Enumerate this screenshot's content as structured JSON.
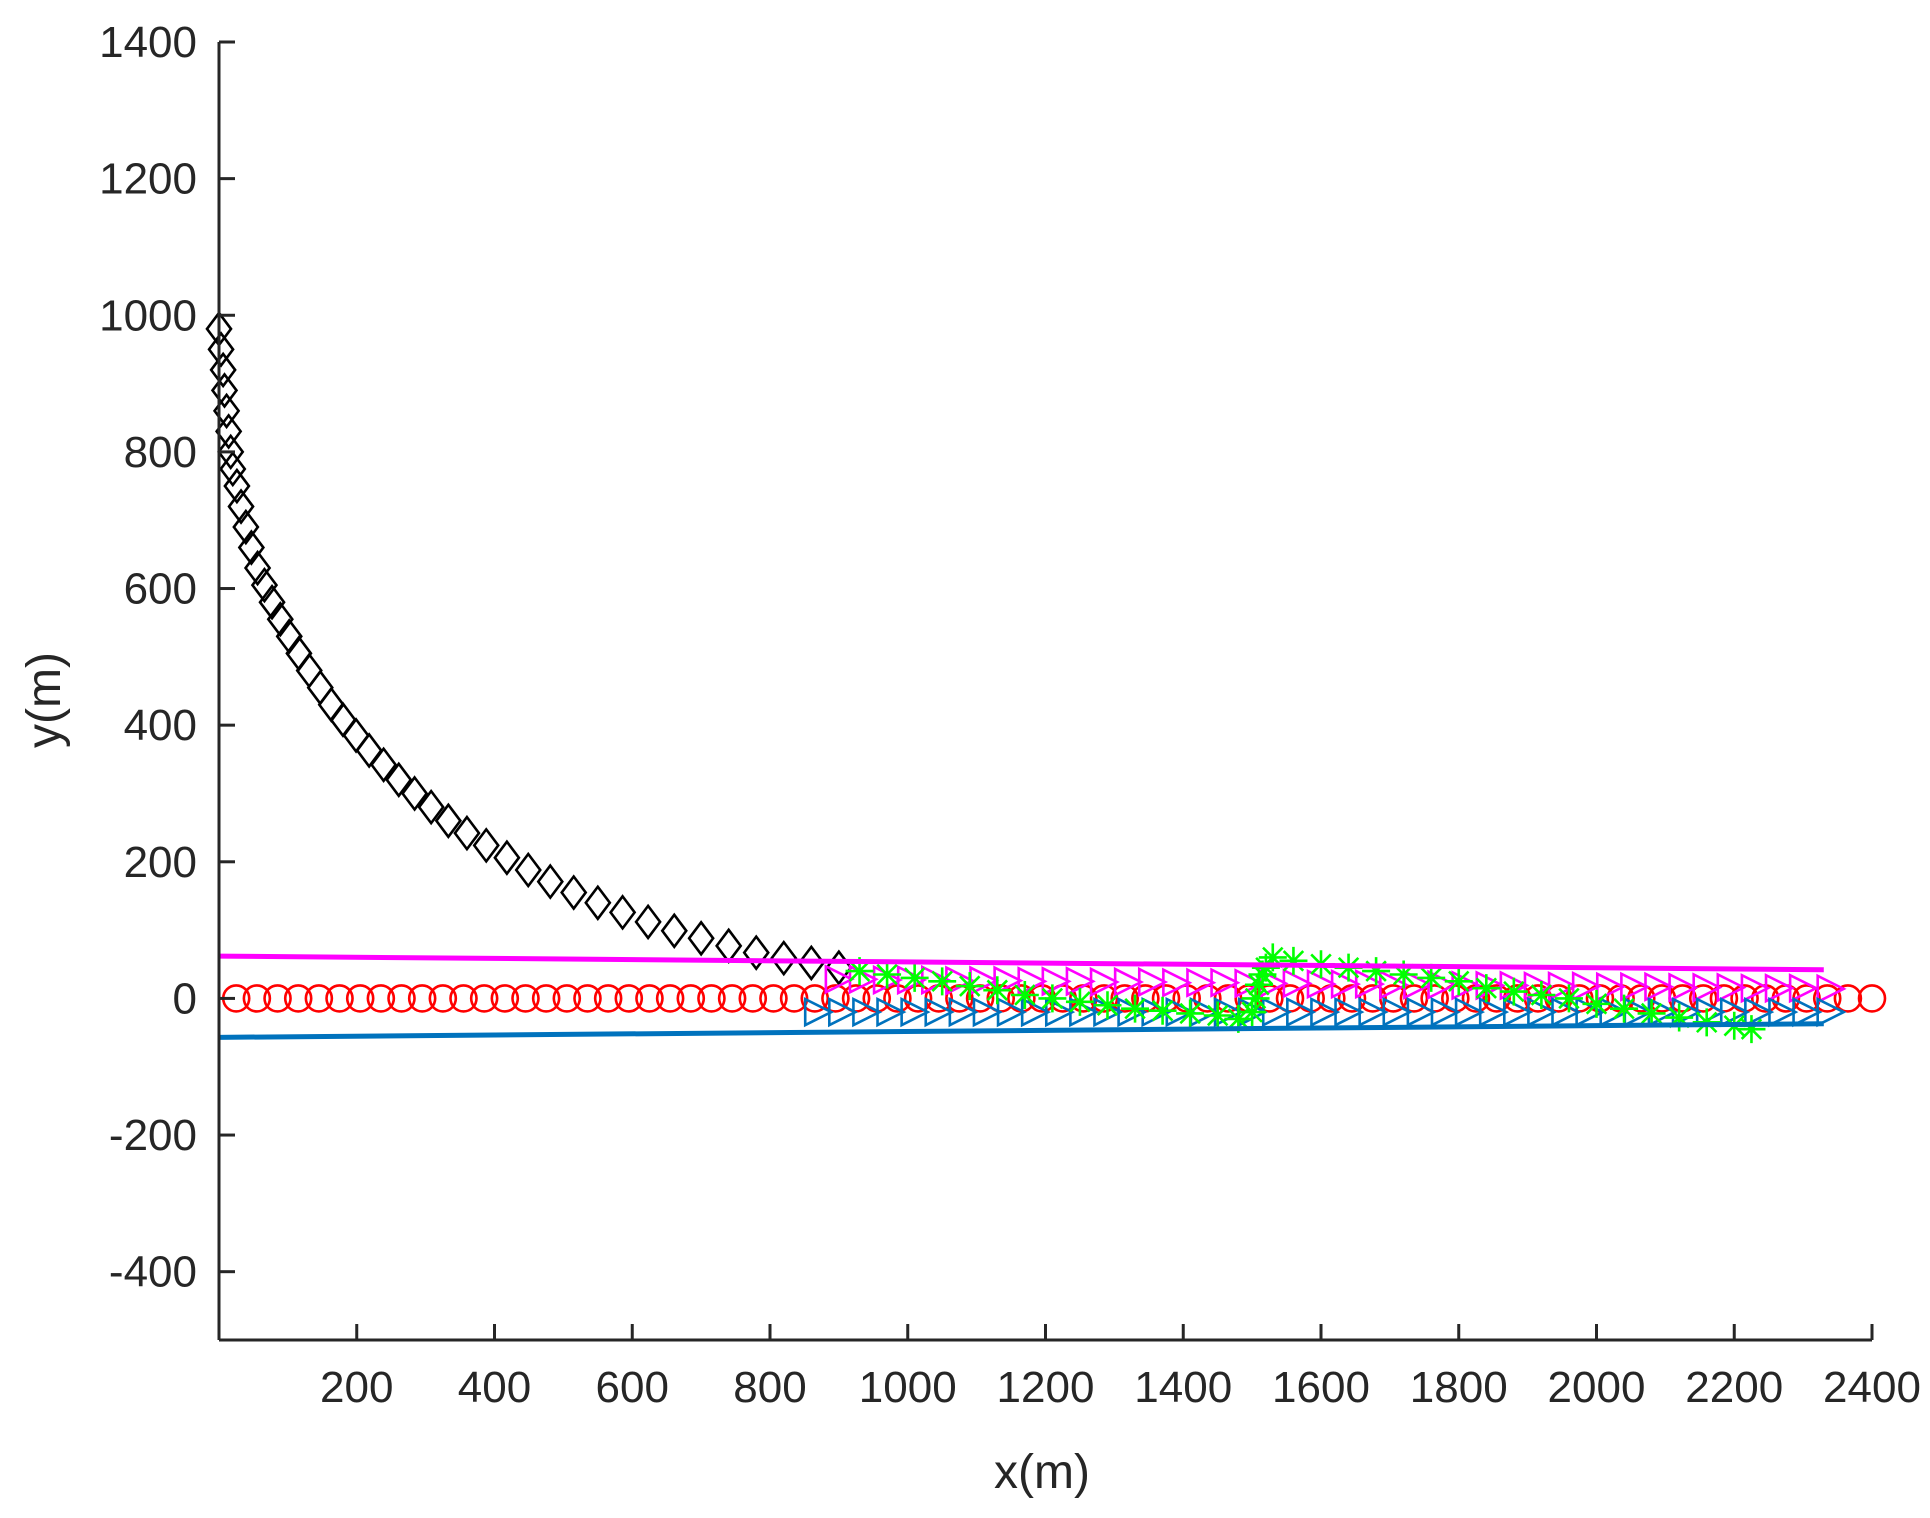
{
  "chart_data": {
    "type": "scatter",
    "title": "",
    "xlabel": "x(m)",
    "ylabel": "y(m)",
    "xlim": [
      0,
      2400
    ],
    "ylim": [
      -500,
      1400
    ],
    "xticks": [
      200,
      400,
      600,
      800,
      1000,
      1200,
      1400,
      1600,
      1800,
      2000,
      2200,
      2400
    ],
    "yticks": [
      -400,
      -200,
      0,
      200,
      400,
      600,
      800,
      1000,
      1200,
      1400
    ],
    "grid": false,
    "legend": "none",
    "series": [
      {
        "marker": "diamond",
        "color": "#000000",
        "x": [
          0,
          3,
          6,
          8,
          11,
          14,
          17,
          20,
          26,
          32,
          39,
          47,
          56,
          66,
          77,
          89,
          102,
          116,
          131,
          147,
          163,
          180,
          199,
          218,
          239,
          261,
          284,
          308,
          333,
          360,
          388,
          418,
          449,
          481,
          515,
          550,
          586,
          623,
          661,
          700,
          740,
          780,
          820,
          860,
          900
        ],
        "y": [
          980,
          950,
          920,
          890,
          860,
          830,
          800,
          775,
          750,
          720,
          690,
          660,
          630,
          605,
          580,
          555,
          530,
          505,
          480,
          455,
          430,
          408,
          385,
          363,
          342,
          320,
          300,
          280,
          260,
          242,
          224,
          206,
          188,
          171,
          155,
          140,
          126,
          112,
          99,
          88,
          77,
          67,
          59,
          52,
          45
        ]
      },
      {
        "marker": "circle",
        "color": "#ff0000",
        "x": [
          25,
          55,
          85,
          115,
          145,
          175,
          205,
          235,
          265,
          295,
          325,
          355,
          385,
          415,
          445,
          475,
          505,
          535,
          565,
          595,
          625,
          655,
          685,
          715,
          745,
          775,
          805,
          835,
          865,
          895,
          925,
          955,
          985,
          1015,
          1045,
          1075,
          1105,
          1135,
          1165,
          1195,
          1225,
          1255,
          1285,
          1315,
          1345,
          1375,
          1405,
          1435,
          1465,
          1495,
          1525,
          1555,
          1585,
          1615,
          1645,
          1675,
          1705,
          1735,
          1765,
          1795,
          1825,
          1855,
          1885,
          1915,
          1945,
          1975,
          2005,
          2035,
          2065,
          2095,
          2125,
          2155,
          2185,
          2215,
          2245,
          2275,
          2305,
          2335,
          2365,
          2400
        ],
        "y": [
          0,
          0,
          0,
          0,
          0,
          0,
          0,
          0,
          0,
          0,
          0,
          0,
          0,
          0,
          0,
          0,
          0,
          0,
          0,
          0,
          0,
          0,
          0,
          0,
          0,
          0,
          0,
          0,
          0,
          0,
          0,
          0,
          0,
          0,
          0,
          0,
          0,
          0,
          0,
          0,
          0,
          0,
          0,
          0,
          0,
          0,
          0,
          0,
          0,
          0,
          0,
          0,
          0,
          0,
          0,
          0,
          0,
          0,
          0,
          0,
          0,
          0,
          0,
          0,
          0,
          0,
          0,
          0,
          0,
          0,
          0,
          0,
          0,
          0,
          0,
          0,
          0,
          0,
          0,
          0
        ]
      },
      {
        "marker": "triangle-right",
        "color": "#ff00ff",
        "x": [
          900,
          935,
          970,
          1005,
          1040,
          1075,
          1110,
          1145,
          1180,
          1215,
          1250,
          1285,
          1320,
          1355,
          1390,
          1425,
          1460,
          1495,
          1530,
          1565,
          1600,
          1635,
          1670,
          1705,
          1740,
          1775,
          1810,
          1845,
          1880,
          1915,
          1950,
          1985,
          2020,
          2055,
          2090,
          2125,
          2160,
          2195,
          2230,
          2265,
          2300,
          2340
        ],
        "y": [
          28,
          28,
          27,
          27,
          27,
          26,
          26,
          26,
          25,
          25,
          25,
          24,
          24,
          24,
          23,
          23,
          23,
          22,
          22,
          22,
          21,
          21,
          21,
          20,
          20,
          20,
          19,
          19,
          19,
          18,
          18,
          18,
          17,
          17,
          17,
          16,
          16,
          16,
          15,
          15,
          15,
          14
        ]
      },
      {
        "marker": "triangle-right",
        "color": "#0072bd",
        "x": [
          870,
          905,
          940,
          975,
          1010,
          1045,
          1080,
          1115,
          1150,
          1185,
          1220,
          1255,
          1290,
          1325,
          1360,
          1395,
          1430,
          1465,
          1500,
          1535,
          1570,
          1605,
          1640,
          1675,
          1710,
          1745,
          1780,
          1815,
          1850,
          1885,
          1920,
          1955,
          1990,
          2025,
          2060,
          2095,
          2130,
          2165,
          2200,
          2235,
          2270,
          2305,
          2340
        ],
        "y": [
          -20,
          -20,
          -20,
          -20,
          -20,
          -20,
          -20,
          -20,
          -20,
          -20,
          -20,
          -20,
          -20,
          -20,
          -20,
          -20,
          -20,
          -20,
          -20,
          -20,
          -20,
          -20,
          -20,
          -20,
          -20,
          -20,
          -20,
          -20,
          -20,
          -20,
          -20,
          -20,
          -20,
          -20,
          -20,
          -20,
          -20,
          -20,
          -20,
          -20,
          -20,
          -20,
          -20
        ]
      },
      {
        "marker": "star",
        "color": "#00ff00",
        "x": [
          930,
          970,
          1010,
          1050,
          1090,
          1130,
          1170,
          1210,
          1250,
          1290,
          1330,
          1370,
          1410,
          1450,
          1480,
          1500,
          1505,
          1510,
          1515,
          1520,
          1530,
          1560,
          1600,
          1640,
          1680,
          1720,
          1760,
          1800,
          1840,
          1880,
          1920,
          1960,
          2000,
          2040,
          2080,
          2120,
          2160,
          2200,
          2225
        ],
        "y": [
          40,
          35,
          30,
          25,
          18,
          12,
          5,
          0,
          -5,
          -10,
          -15,
          -18,
          -22,
          -25,
          -30,
          -20,
          0,
          20,
          35,
          45,
          60,
          55,
          50,
          45,
          40,
          35,
          30,
          25,
          15,
          10,
          5,
          0,
          -8,
          -15,
          -22,
          -28,
          -35,
          -40,
          -45
        ]
      },
      {
        "marker": "line",
        "color": "#ff00ff",
        "line_width": 5,
        "x": [
          0,
          2330
        ],
        "y": [
          62,
          42
        ]
      },
      {
        "marker": "line",
        "color": "#0072bd",
        "line_width": 5,
        "x": [
          0,
          2330
        ],
        "y": [
          -57,
          -37
        ]
      }
    ]
  }
}
